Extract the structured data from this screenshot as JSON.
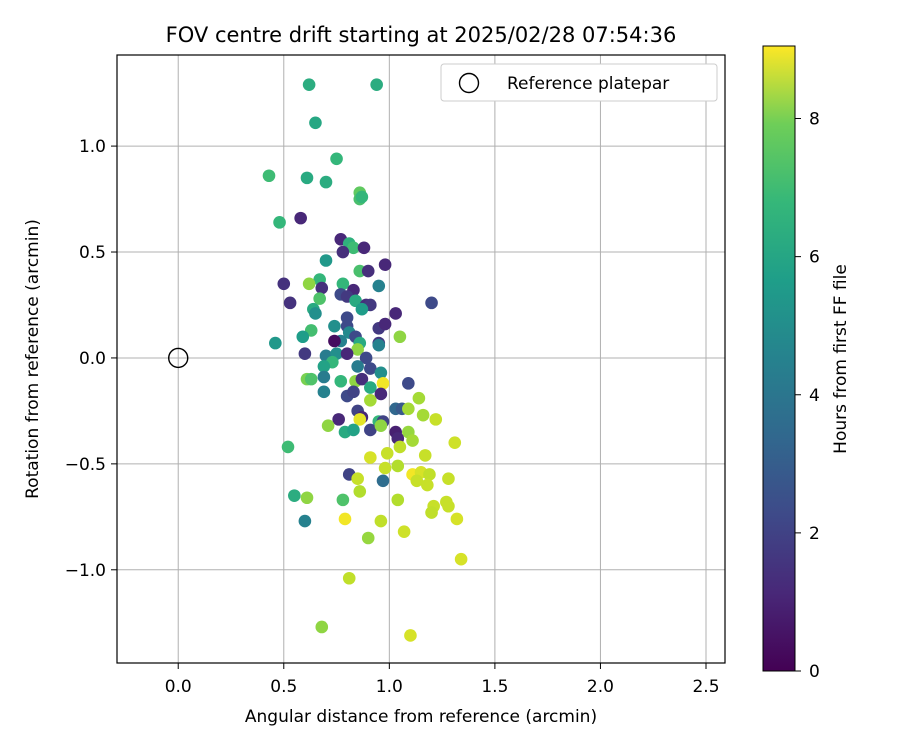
{
  "chart_data": {
    "type": "scatter",
    "title": "FOV centre drift starting at 2025/02/28 07:54:36",
    "xlabel": "Angular distance from reference (arcmin)",
    "ylabel": "Rotation from reference (arcmin)",
    "xlim": [
      -0.29,
      2.59
    ],
    "ylim": [
      -1.44,
      1.43
    ],
    "xticks": [
      0.0,
      0.5,
      1.0,
      1.5,
      2.0,
      2.5
    ],
    "xtick_labels": [
      "0.0",
      "0.5",
      "1.0",
      "1.5",
      "2.0",
      "2.5"
    ],
    "yticks": [
      -1.0,
      -0.5,
      0.0,
      0.5,
      1.0
    ],
    "ytick_labels": [
      "−1.0",
      "−0.5",
      "0.0",
      "0.5",
      "1.0"
    ],
    "grid": true,
    "legend": {
      "position": "top-right",
      "entries": [
        "Reference platepar"
      ]
    },
    "reference_point": {
      "x": 0.0,
      "y": 0.0
    },
    "colorbar": {
      "label": "Hours from first FF file",
      "colormap": "viridis",
      "range": [
        0,
        9.05
      ],
      "ticks": [
        0,
        2,
        4,
        6,
        8
      ],
      "tick_labels": [
        "0",
        "2",
        "4",
        "6",
        "8"
      ]
    },
    "points": [
      {
        "x": 0.62,
        "y": 1.29,
        "h": 5.6
      },
      {
        "x": 0.94,
        "y": 1.29,
        "h": 5.6
      },
      {
        "x": 0.65,
        "y": 1.11,
        "h": 5.4
      },
      {
        "x": 0.75,
        "y": 0.94,
        "h": 6.0
      },
      {
        "x": 0.43,
        "y": 0.86,
        "h": 6.2
      },
      {
        "x": 0.61,
        "y": 0.85,
        "h": 5.5
      },
      {
        "x": 0.7,
        "y": 0.83,
        "h": 5.6
      },
      {
        "x": 0.86,
        "y": 0.78,
        "h": 6.8
      },
      {
        "x": 0.86,
        "y": 0.75,
        "h": 6.4
      },
      {
        "x": 0.87,
        "y": 0.76,
        "h": 6.0
      },
      {
        "x": 0.48,
        "y": 0.64,
        "h": 6.0
      },
      {
        "x": 0.58,
        "y": 0.66,
        "h": 1.0
      },
      {
        "x": 0.77,
        "y": 0.56,
        "h": 1.0
      },
      {
        "x": 0.81,
        "y": 0.54,
        "h": 5.8
      },
      {
        "x": 0.83,
        "y": 0.52,
        "h": 6.2
      },
      {
        "x": 0.78,
        "y": 0.5,
        "h": 1.2
      },
      {
        "x": 0.88,
        "y": 0.52,
        "h": 1.0
      },
      {
        "x": 0.7,
        "y": 0.46,
        "h": 4.8
      },
      {
        "x": 0.98,
        "y": 0.44,
        "h": 1.0
      },
      {
        "x": 0.86,
        "y": 0.41,
        "h": 6.4
      },
      {
        "x": 0.9,
        "y": 0.41,
        "h": 1.2
      },
      {
        "x": 0.67,
        "y": 0.37,
        "h": 6.0
      },
      {
        "x": 0.5,
        "y": 0.35,
        "h": 1.3
      },
      {
        "x": 0.62,
        "y": 0.35,
        "h": 7.5
      },
      {
        "x": 0.78,
        "y": 0.35,
        "h": 6.0
      },
      {
        "x": 0.95,
        "y": 0.34,
        "h": 4.0
      },
      {
        "x": 0.68,
        "y": 0.33,
        "h": 1.2
      },
      {
        "x": 0.83,
        "y": 0.32,
        "h": 1.0
      },
      {
        "x": 0.77,
        "y": 0.3,
        "h": 2.0
      },
      {
        "x": 0.8,
        "y": 0.29,
        "h": 1.5
      },
      {
        "x": 0.67,
        "y": 0.28,
        "h": 6.5
      },
      {
        "x": 0.84,
        "y": 0.27,
        "h": 5.5
      },
      {
        "x": 0.53,
        "y": 0.26,
        "h": 1.3
      },
      {
        "x": 1.2,
        "y": 0.26,
        "h": 2.0
      },
      {
        "x": 0.89,
        "y": 0.25,
        "h": 1.2
      },
      {
        "x": 0.91,
        "y": 0.25,
        "h": 1.5
      },
      {
        "x": 0.87,
        "y": 0.23,
        "h": 5.0
      },
      {
        "x": 0.64,
        "y": 0.23,
        "h": 5.5
      },
      {
        "x": 0.65,
        "y": 0.21,
        "h": 4.5
      },
      {
        "x": 1.03,
        "y": 0.21,
        "h": 1.0
      },
      {
        "x": 0.8,
        "y": 0.19,
        "h": 2.0
      },
      {
        "x": 0.74,
        "y": 0.15,
        "h": 4.5
      },
      {
        "x": 0.8,
        "y": 0.15,
        "h": 2.0
      },
      {
        "x": 0.95,
        "y": 0.14,
        "h": 1.5
      },
      {
        "x": 0.98,
        "y": 0.16,
        "h": 1.0
      },
      {
        "x": 0.63,
        "y": 0.13,
        "h": 6.3
      },
      {
        "x": 0.81,
        "y": 0.12,
        "h": 4.3
      },
      {
        "x": 0.84,
        "y": 0.1,
        "h": 2.0
      },
      {
        "x": 0.59,
        "y": 0.1,
        "h": 5.0
      },
      {
        "x": 1.05,
        "y": 0.1,
        "h": 7.5
      },
      {
        "x": 0.77,
        "y": 0.08,
        "h": 4.0
      },
      {
        "x": 0.86,
        "y": 0.07,
        "h": 5.5
      },
      {
        "x": 0.74,
        "y": 0.08,
        "h": 0.3
      },
      {
        "x": 0.46,
        "y": 0.07,
        "h": 4.8
      },
      {
        "x": 0.95,
        "y": 0.07,
        "h": 1.5
      },
      {
        "x": 0.95,
        "y": 0.06,
        "h": 4.0
      },
      {
        "x": 0.85,
        "y": 0.04,
        "h": 7.5
      },
      {
        "x": 0.6,
        "y": 0.02,
        "h": 1.5
      },
      {
        "x": 0.7,
        "y": 0.01,
        "h": 3.8
      },
      {
        "x": 0.75,
        "y": 0.02,
        "h": 4.5
      },
      {
        "x": 0.8,
        "y": 0.02,
        "h": 1.0
      },
      {
        "x": 0.89,
        "y": 0.0,
        "h": 2.0
      },
      {
        "x": 0.73,
        "y": -0.02,
        "h": 6.0
      },
      {
        "x": 0.69,
        "y": -0.04,
        "h": 5.2
      },
      {
        "x": 0.85,
        "y": -0.04,
        "h": 3.8
      },
      {
        "x": 0.91,
        "y": -0.05,
        "h": 2.0
      },
      {
        "x": 0.96,
        "y": -0.07,
        "h": 4.5
      },
      {
        "x": 0.61,
        "y": -0.1,
        "h": 7.2
      },
      {
        "x": 0.63,
        "y": -0.1,
        "h": 6.5
      },
      {
        "x": 0.69,
        "y": -0.09,
        "h": 3.8
      },
      {
        "x": 0.77,
        "y": -0.11,
        "h": 6.0
      },
      {
        "x": 0.84,
        "y": -0.11,
        "h": 7.5
      },
      {
        "x": 0.87,
        "y": -0.1,
        "h": 1.2
      },
      {
        "x": 0.97,
        "y": -0.12,
        "h": 8.9
      },
      {
        "x": 1.09,
        "y": -0.12,
        "h": 2.0
      },
      {
        "x": 0.69,
        "y": -0.16,
        "h": 4.0
      },
      {
        "x": 0.8,
        "y": -0.18,
        "h": 2.0
      },
      {
        "x": 0.83,
        "y": -0.16,
        "h": 1.8
      },
      {
        "x": 0.91,
        "y": -0.14,
        "h": 5.5
      },
      {
        "x": 0.96,
        "y": -0.17,
        "h": 1.0
      },
      {
        "x": 1.14,
        "y": -0.19,
        "h": 7.8
      },
      {
        "x": 0.91,
        "y": -0.2,
        "h": 7.8
      },
      {
        "x": 0.85,
        "y": -0.25,
        "h": 1.8
      },
      {
        "x": 1.03,
        "y": -0.24,
        "h": 3.0
      },
      {
        "x": 1.06,
        "y": -0.24,
        "h": 2.5
      },
      {
        "x": 1.09,
        "y": -0.24,
        "h": 7.8
      },
      {
        "x": 0.76,
        "y": -0.29,
        "h": 1.0
      },
      {
        "x": 0.87,
        "y": -0.28,
        "h": 1.0
      },
      {
        "x": 0.95,
        "y": -0.3,
        "h": 6.0
      },
      {
        "x": 0.97,
        "y": -0.3,
        "h": 1.8
      },
      {
        "x": 1.16,
        "y": -0.27,
        "h": 7.8
      },
      {
        "x": 1.22,
        "y": -0.29,
        "h": 8.3
      },
      {
        "x": 0.86,
        "y": -0.29,
        "h": 8.7
      },
      {
        "x": 0.71,
        "y": -0.32,
        "h": 7.5
      },
      {
        "x": 0.79,
        "y": -0.35,
        "h": 5.5
      },
      {
        "x": 0.83,
        "y": -0.34,
        "h": 5.2
      },
      {
        "x": 0.91,
        "y": -0.34,
        "h": 1.8
      },
      {
        "x": 0.96,
        "y": -0.32,
        "h": 7.5
      },
      {
        "x": 1.03,
        "y": -0.35,
        "h": 0.8
      },
      {
        "x": 1.09,
        "y": -0.35,
        "h": 7.6
      },
      {
        "x": 1.04,
        "y": -0.38,
        "h": 1.0
      },
      {
        "x": 1.11,
        "y": -0.39,
        "h": 7.8
      },
      {
        "x": 1.31,
        "y": -0.4,
        "h": 8.4
      },
      {
        "x": 0.52,
        "y": -0.42,
        "h": 6.2
      },
      {
        "x": 1.05,
        "y": -0.42,
        "h": 8.2
      },
      {
        "x": 0.91,
        "y": -0.47,
        "h": 8.5
      },
      {
        "x": 0.99,
        "y": -0.45,
        "h": 8.3
      },
      {
        "x": 1.17,
        "y": -0.46,
        "h": 8.3
      },
      {
        "x": 0.98,
        "y": -0.52,
        "h": 8.3
      },
      {
        "x": 1.04,
        "y": -0.51,
        "h": 8.0
      },
      {
        "x": 0.81,
        "y": -0.55,
        "h": 1.8
      },
      {
        "x": 1.11,
        "y": -0.55,
        "h": 8.9
      },
      {
        "x": 1.15,
        "y": -0.54,
        "h": 8.5
      },
      {
        "x": 1.19,
        "y": -0.55,
        "h": 8.2
      },
      {
        "x": 0.85,
        "y": -0.57,
        "h": 8.3
      },
      {
        "x": 0.97,
        "y": -0.58,
        "h": 3.2
      },
      {
        "x": 1.13,
        "y": -0.58,
        "h": 8.3
      },
      {
        "x": 1.18,
        "y": -0.6,
        "h": 8.3
      },
      {
        "x": 1.28,
        "y": -0.57,
        "h": 8.3
      },
      {
        "x": 0.86,
        "y": -0.63,
        "h": 8.0
      },
      {
        "x": 0.55,
        "y": -0.65,
        "h": 5.6
      },
      {
        "x": 0.61,
        "y": -0.66,
        "h": 7.5
      },
      {
        "x": 0.78,
        "y": -0.67,
        "h": 6.5
      },
      {
        "x": 1.04,
        "y": -0.67,
        "h": 8.0
      },
      {
        "x": 1.27,
        "y": -0.68,
        "h": 8.3
      },
      {
        "x": 1.28,
        "y": -0.7,
        "h": 8.3
      },
      {
        "x": 1.21,
        "y": -0.7,
        "h": 8.3
      },
      {
        "x": 1.2,
        "y": -0.73,
        "h": 8.2
      },
      {
        "x": 0.6,
        "y": -0.77,
        "h": 4.0
      },
      {
        "x": 0.79,
        "y": -0.76,
        "h": 8.9
      },
      {
        "x": 0.96,
        "y": -0.77,
        "h": 8.2
      },
      {
        "x": 1.32,
        "y": -0.76,
        "h": 8.5
      },
      {
        "x": 1.07,
        "y": -0.82,
        "h": 8.4
      },
      {
        "x": 0.9,
        "y": -0.85,
        "h": 7.6
      },
      {
        "x": 1.34,
        "y": -0.95,
        "h": 8.5
      },
      {
        "x": 0.81,
        "y": -1.04,
        "h": 8.2
      },
      {
        "x": 0.68,
        "y": -1.27,
        "h": 7.5
      },
      {
        "x": 1.1,
        "y": -1.31,
        "h": 8.5
      }
    ]
  }
}
